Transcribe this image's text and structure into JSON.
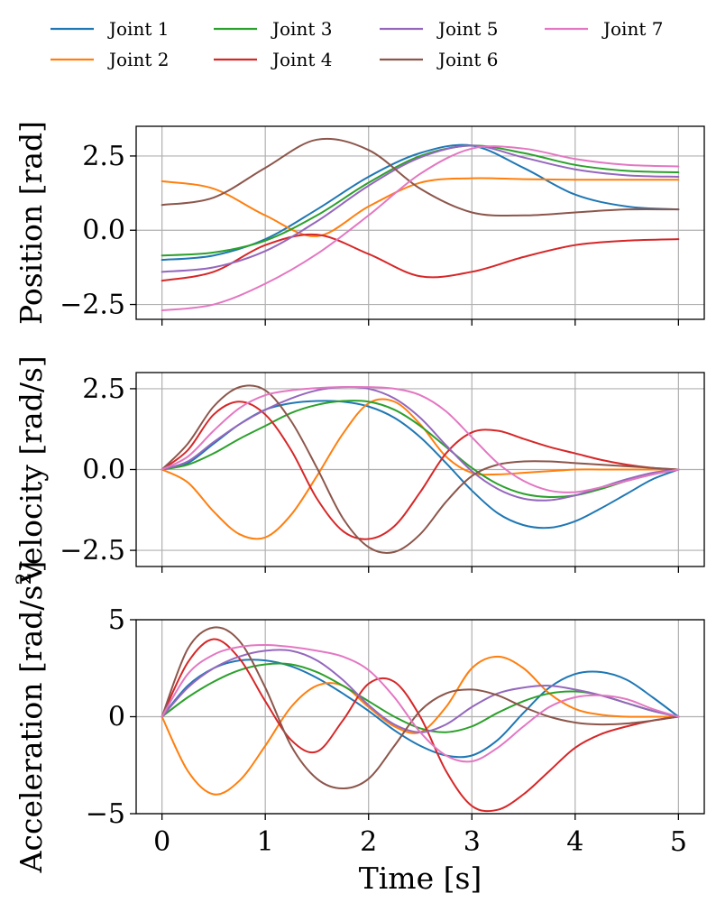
{
  "chart_data": {
    "type": "line",
    "layout": "three stacked subplots sharing a common time axis",
    "xlabel": "Time [s]",
    "xlim": [
      -0.25,
      5.25
    ],
    "x_ticks": [
      0,
      1,
      2,
      3,
      4,
      5
    ],
    "x_tick_labels": [
      "0",
      "1",
      "2",
      "3",
      "4",
      "5"
    ],
    "grid": true,
    "legend": {
      "placement": "top, above all subplots, 4 columns",
      "entries": [
        "Joint 1",
        "Joint 2",
        "Joint 3",
        "Joint 4",
        "Joint 5",
        "Joint 6",
        "Joint 7"
      ]
    },
    "series_colors": [
      "#1f77b4",
      "#ff7f0e",
      "#2ca02c",
      "#d62728",
      "#9467bd",
      "#8c564b",
      "#e377c2"
    ],
    "subplots": [
      {
        "id": "position",
        "ylabel": "Position [rad]",
        "ylim": [
          -3.0,
          3.5
        ],
        "y_ticks": [
          -2.5,
          0.0,
          2.5
        ],
        "y_tick_labels": [
          "−2.5",
          "0.0",
          "2.5"
        ],
        "x": [
          0.0,
          0.5,
          1.0,
          1.5,
          2.0,
          2.5,
          3.0,
          3.5,
          4.0,
          4.5,
          5.0
        ],
        "series": [
          {
            "name": "Joint 1",
            "values": [
              -1.0,
              -0.85,
              -0.3,
              0.7,
              1.8,
              2.6,
              2.85,
              2.1,
              1.2,
              0.8,
              0.7
            ]
          },
          {
            "name": "Joint 2",
            "values": [
              1.65,
              1.4,
              0.5,
              -0.2,
              0.8,
              1.6,
              1.75,
              1.72,
              1.7,
              1.7,
              1.7
            ]
          },
          {
            "name": "Joint 3",
            "values": [
              -0.85,
              -0.75,
              -0.35,
              0.5,
              1.6,
              2.5,
              2.85,
              2.6,
              2.2,
              2.0,
              1.95
            ]
          },
          {
            "name": "Joint 4",
            "values": [
              -1.7,
              -1.4,
              -0.5,
              -0.15,
              -0.8,
              -1.55,
              -1.4,
              -0.9,
              -0.5,
              -0.35,
              -0.3
            ]
          },
          {
            "name": "Joint 5",
            "values": [
              -1.4,
              -1.25,
              -0.7,
              0.3,
              1.5,
              2.45,
              2.85,
              2.45,
              2.05,
              1.85,
              1.8
            ]
          },
          {
            "name": "Joint 6",
            "values": [
              0.85,
              1.1,
              2.1,
              3.05,
              2.7,
              1.4,
              0.6,
              0.5,
              0.6,
              0.7,
              0.7
            ]
          },
          {
            "name": "Joint 7",
            "values": [
              -2.7,
              -2.5,
              -1.8,
              -0.8,
              0.5,
              1.9,
              2.75,
              2.75,
              2.4,
              2.2,
              2.15
            ]
          }
        ]
      },
      {
        "id": "velocity",
        "ylabel": "Velocity [rad/s]",
        "ylim": [
          -3.0,
          3.0
        ],
        "y_ticks": [
          -2.5,
          0.0,
          2.5
        ],
        "y_tick_labels": [
          "−2.5",
          "0.0",
          "2.5"
        ],
        "x": [
          0.0,
          0.25,
          0.5,
          0.75,
          1.0,
          1.25,
          1.5,
          1.75,
          2.0,
          2.25,
          2.5,
          2.75,
          3.0,
          3.25,
          3.5,
          3.75,
          4.0,
          4.25,
          4.5,
          4.75,
          5.0
        ],
        "series": [
          {
            "name": "Joint 1",
            "values": [
              0.0,
              0.2,
              0.8,
              1.4,
              1.85,
              2.05,
              2.12,
              2.1,
              1.95,
              1.6,
              1.0,
              0.2,
              -0.65,
              -1.35,
              -1.72,
              -1.8,
              -1.6,
              -1.2,
              -0.75,
              -0.3,
              0.0
            ]
          },
          {
            "name": "Joint 2",
            "values": [
              0.0,
              -0.4,
              -1.3,
              -2.0,
              -2.1,
              -1.4,
              -0.2,
              1.1,
              2.05,
              2.1,
              1.4,
              0.4,
              -0.1,
              -0.15,
              -0.1,
              -0.05,
              0.0,
              0.0,
              0.0,
              0.0,
              0.0
            ]
          },
          {
            "name": "Joint 3",
            "values": [
              0.0,
              0.15,
              0.5,
              0.95,
              1.35,
              1.75,
              2.0,
              2.12,
              2.1,
              1.85,
              1.35,
              0.7,
              0.05,
              -0.45,
              -0.75,
              -0.85,
              -0.8,
              -0.6,
              -0.35,
              -0.15,
              0.0
            ]
          },
          {
            "name": "Joint 4",
            "values": [
              0.0,
              0.6,
              1.7,
              2.1,
              1.7,
              0.6,
              -0.9,
              -1.9,
              -2.15,
              -1.75,
              -0.7,
              0.5,
              1.15,
              1.2,
              0.95,
              0.7,
              0.5,
              0.3,
              0.15,
              0.05,
              0.0
            ]
          },
          {
            "name": "Joint 5",
            "values": [
              0.0,
              0.25,
              0.85,
              1.4,
              1.85,
              2.2,
              2.45,
              2.55,
              2.5,
              2.2,
              1.6,
              0.75,
              -0.05,
              -0.6,
              -0.9,
              -0.95,
              -0.8,
              -0.55,
              -0.3,
              -0.1,
              0.0
            ]
          },
          {
            "name": "Joint 6",
            "values": [
              0.0,
              0.8,
              1.95,
              2.55,
              2.45,
              1.5,
              0.05,
              -1.5,
              -2.4,
              -2.55,
              -2.0,
              -1.0,
              -0.2,
              0.15,
              0.25,
              0.25,
              0.2,
              0.15,
              0.1,
              0.05,
              0.0
            ]
          },
          {
            "name": "Joint 7",
            "values": [
              0.0,
              0.4,
              1.2,
              1.9,
              2.3,
              2.45,
              2.52,
              2.55,
              2.55,
              2.5,
              2.3,
              1.8,
              1.0,
              0.2,
              -0.35,
              -0.65,
              -0.7,
              -0.55,
              -0.35,
              -0.15,
              0.0
            ]
          }
        ]
      },
      {
        "id": "acceleration",
        "ylabel_base": "Acceleration [rad/s",
        "ylabel_sup": "2",
        "ylabel_tail": "]",
        "ylim": [
          -5.0,
          5.0
        ],
        "y_ticks": [
          -5,
          0,
          5
        ],
        "y_tick_labels": [
          "−5",
          "0",
          "5"
        ],
        "x": [
          0.0,
          0.25,
          0.5,
          0.75,
          1.0,
          1.25,
          1.5,
          1.75,
          2.0,
          2.25,
          2.5,
          2.75,
          3.0,
          3.25,
          3.5,
          3.75,
          4.0,
          4.25,
          4.5,
          4.75,
          5.0
        ],
        "series": [
          {
            "name": "Joint 1",
            "values": [
              0.0,
              1.6,
              2.5,
              2.9,
              2.9,
              2.6,
              2.0,
              1.2,
              0.3,
              -0.7,
              -1.5,
              -2.0,
              -2.0,
              -1.2,
              0.2,
              1.5,
              2.2,
              2.3,
              1.9,
              1.0,
              0.0
            ]
          },
          {
            "name": "Joint 2",
            "values": [
              0.0,
              -2.8,
              -4.0,
              -3.3,
              -1.5,
              0.5,
              1.6,
              1.6,
              0.5,
              -0.5,
              -0.8,
              0.5,
              2.5,
              3.1,
              2.5,
              1.2,
              0.4,
              0.1,
              0.0,
              0.0,
              0.0
            ]
          },
          {
            "name": "Joint 3",
            "values": [
              0.0,
              1.0,
              1.8,
              2.4,
              2.7,
              2.7,
              2.3,
              1.6,
              0.8,
              0.0,
              -0.6,
              -0.8,
              -0.5,
              0.2,
              0.8,
              1.2,
              1.3,
              1.1,
              0.7,
              0.3,
              0.0
            ]
          },
          {
            "name": "Joint 4",
            "values": [
              0.0,
              2.8,
              4.0,
              3.0,
              0.8,
              -1.2,
              -1.8,
              -0.2,
              1.7,
              1.8,
              0.0,
              -2.8,
              -4.6,
              -4.8,
              -4.0,
              -2.8,
              -1.6,
              -0.9,
              -0.5,
              -0.2,
              0.0
            ]
          },
          {
            "name": "Joint 5",
            "values": [
              0.0,
              1.5,
              2.5,
              3.1,
              3.4,
              3.4,
              2.9,
              1.9,
              0.6,
              -0.4,
              -0.8,
              -0.4,
              0.5,
              1.2,
              1.5,
              1.6,
              1.4,
              1.1,
              0.7,
              0.3,
              0.0
            ]
          },
          {
            "name": "Joint 6",
            "values": [
              0.0,
              3.5,
              4.6,
              3.9,
              1.5,
              -1.5,
              -3.2,
              -3.7,
              -3.2,
              -1.5,
              0.3,
              1.2,
              1.4,
              1.1,
              0.5,
              0.0,
              -0.3,
              -0.4,
              -0.35,
              -0.2,
              0.0
            ]
          },
          {
            "name": "Joint 7",
            "values": [
              0.0,
              2.2,
              3.2,
              3.6,
              3.7,
              3.6,
              3.4,
              3.1,
              2.4,
              1.0,
              -0.8,
              -2.0,
              -2.3,
              -1.6,
              -0.5,
              0.5,
              1.0,
              1.1,
              0.9,
              0.4,
              0.0
            ]
          }
        ]
      }
    ]
  }
}
